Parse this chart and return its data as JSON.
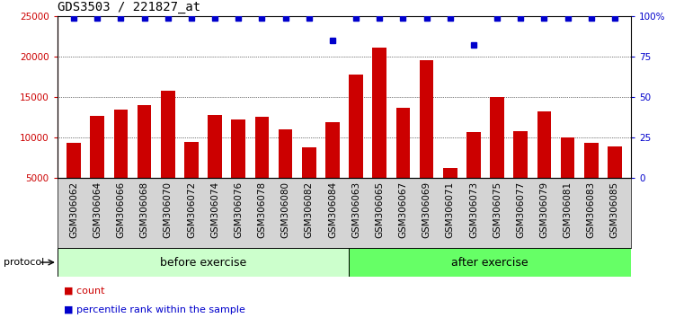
{
  "title": "GDS3503 / 221827_at",
  "categories": [
    "GSM306062",
    "GSM306064",
    "GSM306066",
    "GSM306068",
    "GSM306070",
    "GSM306072",
    "GSM306074",
    "GSM306076",
    "GSM306078",
    "GSM306080",
    "GSM306082",
    "GSM306084",
    "GSM306063",
    "GSM306065",
    "GSM306067",
    "GSM306069",
    "GSM306071",
    "GSM306073",
    "GSM306075",
    "GSM306077",
    "GSM306079",
    "GSM306081",
    "GSM306083",
    "GSM306085"
  ],
  "counts": [
    9400,
    12700,
    13500,
    14000,
    15800,
    9500,
    12800,
    12200,
    12600,
    11000,
    8800,
    11900,
    17800,
    21100,
    13700,
    19500,
    6300,
    10700,
    15000,
    10800,
    13200,
    10000,
    9400,
    8900
  ],
  "percentile_ranks": [
    99,
    99,
    99,
    99,
    99,
    99,
    99,
    99,
    99,
    99,
    99,
    85,
    99,
    99,
    99,
    99,
    99,
    82,
    99,
    99,
    99,
    99,
    99,
    99
  ],
  "before_exercise_count": 12,
  "bar_color": "#cc0000",
  "dot_color": "#0000cc",
  "before_color": "#ccffcc",
  "after_color": "#66ff66",
  "protocol_label": "protocol",
  "before_label": "before exercise",
  "after_label": "after exercise",
  "ylim_left": [
    5000,
    25000
  ],
  "ylim_right": [
    0,
    100
  ],
  "yticks_left": [
    5000,
    10000,
    15000,
    20000,
    25000
  ],
  "yticks_right": [
    0,
    25,
    50,
    75,
    100
  ],
  "ytick_labels_right": [
    "0",
    "25",
    "50",
    "75",
    "100%"
  ],
  "grid_values": [
    10000,
    15000,
    20000,
    25000
  ],
  "background_color": "#ffffff",
  "legend_count_label": "count",
  "legend_pct_label": "percentile rank within the sample",
  "title_fontsize": 10,
  "tick_fontsize": 7.5,
  "bar_width": 0.6
}
